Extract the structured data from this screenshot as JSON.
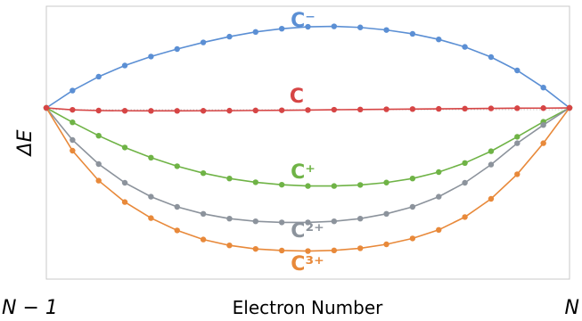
{
  "chart_data": {
    "type": "line",
    "title": "",
    "xlabel": "Electron Number",
    "ylabel": "ΔE",
    "x_tick_labels": [
      "N − 1",
      "N"
    ],
    "x": [
      0,
      0.05,
      0.1,
      0.15,
      0.2,
      0.25,
      0.3,
      0.35,
      0.4,
      0.45,
      0.5,
      0.55,
      0.6,
      0.65,
      0.7,
      0.75,
      0.8,
      0.85,
      0.9,
      0.95,
      1
    ],
    "xlim": [
      0,
      1
    ],
    "ylim": [
      -1.6,
      0.95
    ],
    "grid": false,
    "legend": "none",
    "series": [
      {
        "name": "C⁻",
        "color": "#5b8fd4",
        "values": [
          0,
          0.162,
          0.292,
          0.396,
          0.48,
          0.55,
          0.612,
          0.666,
          0.71,
          0.74,
          0.758,
          0.762,
          0.752,
          0.728,
          0.692,
          0.64,
          0.57,
          0.475,
          0.35,
          0.19,
          0
        ]
      },
      {
        "name": "C",
        "color": "#d64545",
        "values": [
          0,
          -0.018,
          -0.025,
          -0.027,
          -0.028,
          -0.028,
          -0.027,
          -0.026,
          -0.024,
          -0.022,
          -0.02,
          -0.017,
          -0.015,
          -0.013,
          -0.011,
          -0.009,
          -0.007,
          -0.005,
          -0.003,
          -0.002,
          0
        ]
      },
      {
        "name": "C⁺",
        "color": "#6fb346",
        "values": [
          0,
          -0.135,
          -0.26,
          -0.37,
          -0.465,
          -0.545,
          -0.61,
          -0.66,
          -0.695,
          -0.718,
          -0.73,
          -0.73,
          -0.72,
          -0.698,
          -0.66,
          -0.6,
          -0.515,
          -0.405,
          -0.27,
          -0.13,
          0
        ]
      },
      {
        "name": "C²⁺",
        "color": "#8c939c",
        "values": [
          0,
          -0.3,
          -0.525,
          -0.7,
          -0.83,
          -0.925,
          -0.99,
          -1.035,
          -1.06,
          -1.07,
          -1.07,
          -1.06,
          -1.035,
          -0.99,
          -0.925,
          -0.83,
          -0.7,
          -0.53,
          -0.33,
          -0.16,
          0
        ]
      },
      {
        "name": "C³⁺",
        "color": "#e8893a",
        "values": [
          0,
          -0.4,
          -0.68,
          -0.88,
          -1.03,
          -1.145,
          -1.23,
          -1.285,
          -1.318,
          -1.333,
          -1.338,
          -1.332,
          -1.312,
          -1.275,
          -1.22,
          -1.14,
          -1.02,
          -0.85,
          -0.62,
          -0.33,
          0
        ]
      }
    ],
    "annotations": [
      "C⁻",
      "C",
      "C⁺",
      "C²⁺",
      "C³⁺"
    ]
  }
}
